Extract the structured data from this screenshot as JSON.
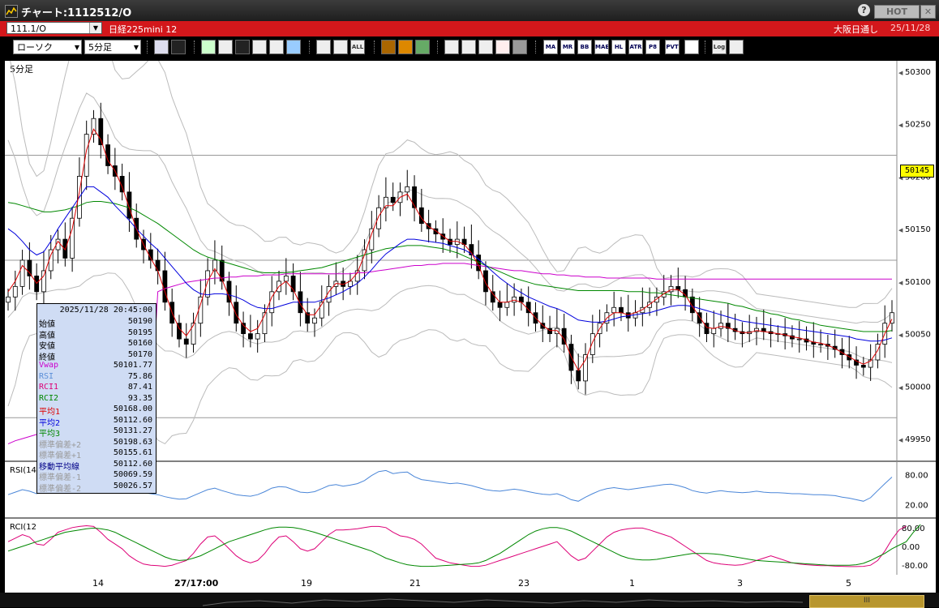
{
  "window": {
    "title": "チャート:1112512/O",
    "help_label": "?",
    "hot_label": "HOT",
    "close_label": "✕"
  },
  "symbol_bar": {
    "symbol": "111.1/O",
    "name": "日経225mini 12",
    "session": "大阪日通し",
    "date": "25/11/28"
  },
  "toolbar": {
    "chart_type": "ローソク",
    "period": "5分足",
    "icons": [
      "zoom-icon",
      "crosshair-icon",
      "pen-icon",
      "line-icon",
      "cursor-icon",
      "arrow-icon",
      "note-icon",
      "trash-icon",
      "candle-left-icon",
      "candle-right-icon",
      "all-icon",
      "settings-icon",
      "tool-icon",
      "color-icon",
      "download-icon",
      "magnify-icon",
      "compare-icon",
      "signal-icon",
      "lock-icon",
      "ma-icon",
      "mr-icon",
      "bb-icon",
      "mae-icon",
      "hl-icon",
      "atr-icon",
      "pb-icon",
      "pvt-icon",
      "box-icon",
      "log-icon",
      "export-icon"
    ],
    "icon_labels": {
      "all": "ALL",
      "ma": "MA",
      "mr": "MR",
      "bb": "BB",
      "mae": "MAE",
      "hl": "HL",
      "atr": "ATR",
      "pb": "P8",
      "pvt": "PVT",
      "log": "Log"
    }
  },
  "chart": {
    "timeframe_label": "5分足",
    "current_price": "50145",
    "y_labels": [
      "50300",
      "50250",
      "50200",
      "50150",
      "50100",
      "50050",
      "50000",
      "49950"
    ],
    "rsi_label": "RSI(14",
    "rsi_levels": [
      "80.00",
      "20.00"
    ],
    "rci_label": "RCI(12",
    "rci_levels": [
      "80.00",
      "0.00",
      "-80.00"
    ],
    "x_labels": [
      "14",
      "27/17:00",
      "19",
      "21",
      "23",
      "1",
      "3",
      "5"
    ]
  },
  "info": {
    "datetime": "2025/11/28  20:45:00",
    "rows": [
      {
        "key": "始値",
        "value": "50190",
        "color": "#000000"
      },
      {
        "key": "高値",
        "value": "50195",
        "color": "#000000"
      },
      {
        "key": "安値",
        "value": "50160",
        "color": "#000000"
      },
      {
        "key": "終値",
        "value": "50170",
        "color": "#000000"
      },
      {
        "key": "Vwap",
        "value": "50101.77",
        "color": "#cc00cc"
      },
      {
        "key": "RSI",
        "value": "75.86",
        "color": "#5b8fd8"
      },
      {
        "key": "RCI1",
        "value": "87.41",
        "color": "#dd0077"
      },
      {
        "key": "RCI2",
        "value": "93.35",
        "color": "#008800"
      },
      {
        "key": "平均1",
        "value": "50168.00",
        "color": "#dd0000"
      },
      {
        "key": "平均2",
        "value": "50112.60",
        "color": "#0000dd"
      },
      {
        "key": "平均3",
        "value": "50131.27",
        "color": "#008800"
      },
      {
        "key": "標準偏差+2",
        "value": "50198.63",
        "color": "#9a9a9a"
      },
      {
        "key": "標準偏差+1",
        "value": "50155.61",
        "color": "#9a9a9a"
      },
      {
        "key": "移動平均線",
        "value": "50112.60",
        "color": "#000088"
      },
      {
        "key": "標準偏差-1",
        "value": "50069.59",
        "color": "#9a9a9a"
      },
      {
        "key": "標準偏差-2",
        "value": "50026.57",
        "color": "#9a9a9a"
      }
    ]
  },
  "chart_data": {
    "type": "candlestick",
    "ylim": [
      49930,
      50310
    ],
    "close": [
      50085,
      50095,
      50120,
      50105,
      50090,
      50110,
      50130,
      50140,
      50122,
      50160,
      50200,
      50240,
      50255,
      50230,
      50210,
      50200,
      50185,
      50160,
      50140,
      50130,
      50120,
      50110,
      50080,
      50060,
      50045,
      50040,
      50060,
      50085,
      50110,
      50120,
      50100,
      50080,
      50060,
      50050,
      50045,
      50050,
      50070,
      50090,
      50100,
      50105,
      50090,
      50070,
      50060,
      50065,
      50080,
      50095,
      50100,
      50095,
      50100,
      50110,
      50130,
      50150,
      50170,
      50180,
      50175,
      50185,
      50190,
      50170,
      50155,
      50150,
      50145,
      50140,
      50135,
      50140,
      50135,
      50125,
      50110,
      50090,
      50080,
      50075,
      50080,
      50085,
      50080,
      50070,
      50060,
      50055,
      50050,
      50055,
      50040,
      50015,
      50005,
      50030,
      50050,
      50060,
      50070,
      50075,
      50070,
      50065,
      50070,
      50075,
      50080,
      50085,
      50090,
      50095,
      50092,
      50085,
      50070,
      50060,
      50050,
      50055,
      50060,
      50055,
      50052,
      50050,
      50052,
      50055,
      50052,
      50050,
      50050,
      50048,
      50045,
      50045,
      50042,
      50040,
      50040,
      50038,
      50035,
      50030,
      50025,
      50020,
      50018,
      50025,
      50040,
      50060,
      50070
    ],
    "ma_short": [
      50090,
      50100,
      50115,
      50108,
      50098,
      50105,
      50125,
      50138,
      50130,
      50150,
      50185,
      50225,
      50245,
      50235,
      50215,
      50205,
      50190,
      50170,
      50150,
      50135,
      50122,
      50110,
      50090,
      50070,
      50055,
      50048,
      50058,
      50078,
      50100,
      50112,
      50102,
      50085,
      50068,
      50058,
      50052,
      50055,
      50068,
      50085,
      50095,
      50100,
      50092,
      50078,
      50068,
      50068,
      50078,
      50090,
      50098,
      50097,
      50100,
      50108,
      50125,
      50145,
      50162,
      50172,
      50172,
      50180,
      50183,
      50172,
      50160,
      50152,
      50148,
      50143,
      50138,
      50138,
      50135,
      50127,
      50115,
      50098,
      50088,
      50080,
      50080,
      50082,
      50080,
      50073,
      50065,
      50058,
      50053,
      50053,
      50045,
      50028,
      50015,
      50025,
      50042,
      50055,
      50065,
      50070,
      50070,
      50068,
      50070,
      50073,
      50078,
      50083,
      50088,
      50092,
      50092,
      50087,
      50076,
      50066,
      50056,
      50055,
      50057,
      50056,
      50053,
      50051,
      50051,
      50053,
      50052,
      50051,
      50050,
      50049,
      50047,
      50046,
      50044,
      50042,
      50041,
      50039,
      50036,
      50032,
      50028,
      50024,
      50021,
      50024,
      50034,
      50050,
      50064
    ],
    "ma_mid": [
      50150,
      50145,
      50138,
      50130,
      50125,
      50128,
      50138,
      50150,
      50160,
      50170,
      50180,
      50190,
      50190,
      50185,
      50180,
      50172,
      50165,
      50158,
      50150,
      50143,
      50136,
      50130,
      50122,
      50114,
      50106,
      50098,
      50092,
      50088,
      50087,
      50088,
      50088,
      50087,
      50085,
      50082,
      50078,
      50075,
      50074,
      50074,
      50076,
      50078,
      50080,
      50080,
      50080,
      50080,
      50082,
      50084,
      50087,
      50090,
      50094,
      50098,
      50104,
      50111,
      50119,
      50126,
      50131,
      50136,
      50140,
      50140,
      50139,
      50138,
      50137,
      50136,
      50134,
      50132,
      50130,
      50126,
      50121,
      50115,
      50109,
      50103,
      50098,
      50093,
      50089,
      50085,
      50082,
      50079,
      50076,
      50074,
      50071,
      50067,
      50063,
      50062,
      50061,
      50061,
      50062,
      50064,
      50066,
      50067,
      50068,
      50069,
      50070,
      50072,
      50074,
      50076,
      50077,
      50077,
      50076,
      50074,
      50072,
      50070,
      50068,
      50066,
      50064,
      50062,
      50061,
      50060,
      50059,
      50058,
      50057,
      50056,
      50055,
      50054,
      50053,
      50052,
      50051,
      50050,
      50049,
      50048,
      50047,
      50045,
      50044,
      50043,
      50043,
      50044,
      50046
    ],
    "ma_long": [
      50175,
      50174,
      50172,
      50170,
      50168,
      50166,
      50166,
      50167,
      50168,
      50170,
      50172,
      50175,
      50176,
      50176,
      50175,
      50174,
      50172,
      50170,
      50167,
      50163,
      50159,
      50155,
      50150,
      50145,
      50140,
      50135,
      50130,
      50126,
      50123,
      50121,
      50119,
      50117,
      50115,
      50113,
      50111,
      50109,
      50108,
      50108,
      50108,
      50108,
      50109,
      50110,
      50111,
      50112,
      50113,
      50115,
      50117,
      50119,
      50121,
      50123,
      50125,
      50127,
      50129,
      50131,
      50132,
      50133,
      50134,
      50134,
      50134,
      50133,
      50132,
      50131,
      50129,
      50127,
      50124,
      50121,
      50118,
      50115,
      50112,
      50109,
      50106,
      50103,
      50101,
      50099,
      50097,
      50096,
      50095,
      50094,
      50093,
      50092,
      50091,
      50091,
      50091,
      50091,
      50091,
      50091,
      50091,
      50090,
      50090,
      50090,
      50089,
      50089,
      50088,
      50087,
      50086,
      50085,
      50084,
      50083,
      50082,
      50081,
      50080,
      50079,
      50077,
      50076,
      50074,
      50072,
      50071,
      50069,
      50068,
      50066,
      50064,
      50063,
      50061,
      50060,
      50058,
      50057,
      50056,
      50055,
      50054,
      50053,
      50052,
      50052,
      50052,
      50052,
      50053
    ],
    "vwap": [
      49945,
      49948,
      49950,
      49952,
      49954,
      49956,
      49957,
      49958,
      49959,
      49960,
      49961,
      49962,
      49963,
      49964,
      49965,
      49966,
      49967,
      49968,
      49969,
      49970,
      49970,
      50090,
      50093,
      50095,
      50097,
      50099,
      50100,
      50101,
      50102,
      50103,
      50103,
      50104,
      50104,
      50105,
      50105,
      50105,
      50106,
      50106,
      50106,
      50107,
      50107,
      50107,
      50107,
      50107,
      50107,
      50107,
      50107,
      50107,
      50107,
      50108,
      50108,
      50109,
      50110,
      50111,
      50112,
      50113,
      50114,
      50115,
      50115,
      50116,
      50116,
      50117,
      50117,
      50117,
      50117,
      50116,
      50115,
      50114,
      50113,
      50112,
      50111,
      50110,
      50110,
      50109,
      50108,
      50107,
      50107,
      50106,
      50106,
      50105,
      50105,
      50104,
      50104,
      50104,
      50103,
      50103,
      50103,
      50103,
      50103,
      50103,
      50103,
      50102,
      50102,
      50102,
      50102,
      50102,
      50102,
      50102,
      50102,
      50102,
      50102,
      50102,
      50102,
      50102,
      50102,
      50102,
      50102,
      50102,
      50102,
      50102,
      50102,
      50102,
      50102,
      50102,
      50102,
      50102,
      50102,
      50102,
      50102,
      50102,
      50102,
      50102,
      50102,
      50102,
      50102
    ],
    "rsi": [
      40,
      45,
      50,
      47,
      42,
      46,
      58,
      60,
      55,
      63,
      70,
      78,
      77,
      72,
      62,
      60,
      57,
      52,
      48,
      44,
      42,
      40,
      36,
      33,
      31,
      32,
      38,
      44,
      50,
      53,
      48,
      44,
      40,
      38,
      37,
      40,
      46,
      53,
      56,
      55,
      50,
      45,
      44,
      46,
      52,
      58,
      60,
      57,
      59,
      62,
      68,
      78,
      86,
      88,
      82,
      84,
      85,
      76,
      70,
      68,
      66,
      64,
      62,
      63,
      61,
      58,
      54,
      50,
      48,
      47,
      49,
      51,
      49,
      46,
      43,
      41,
      40,
      42,
      37,
      30,
      27,
      35,
      42,
      48,
      52,
      54,
      52,
      50,
      52,
      54,
      56,
      58,
      60,
      61,
      58,
      54,
      48,
      45,
      43,
      46,
      48,
      46,
      45,
      44,
      45,
      47,
      45,
      44,
      44,
      43,
      42,
      42,
      41,
      40,
      40,
      39,
      38,
      35,
      33,
      30,
      27,
      34,
      48,
      62,
      75
    ],
    "rci1": [
      20,
      35,
      50,
      40,
      10,
      5,
      30,
      60,
      70,
      80,
      85,
      88,
      85,
      60,
      30,
      10,
      -10,
      -40,
      -60,
      -75,
      -80,
      -82,
      -85,
      -80,
      -70,
      -60,
      -30,
      10,
      40,
      45,
      20,
      -10,
      -40,
      -60,
      -70,
      -60,
      -30,
      10,
      40,
      45,
      20,
      -10,
      -20,
      -10,
      20,
      50,
      70,
      70,
      72,
      75,
      80,
      85,
      85,
      80,
      60,
      45,
      40,
      30,
      10,
      -20,
      -50,
      -60,
      -70,
      -75,
      -80,
      -85,
      -85,
      -80,
      -70,
      -60,
      -50,
      -40,
      -30,
      -20,
      -10,
      0,
      10,
      20,
      -10,
      -40,
      -60,
      -50,
      -20,
      10,
      40,
      60,
      70,
      75,
      78,
      78,
      70,
      60,
      50,
      40,
      20,
      0,
      -20,
      -40,
      -60,
      -70,
      -75,
      -78,
      -80,
      -78,
      -70,
      -60,
      -50,
      -40,
      -50,
      -60,
      -70,
      -75,
      -78,
      -80,
      -82,
      -82,
      -84,
      -85,
      -86,
      -86,
      -85,
      -80,
      -60,
      -20,
      30,
      70,
      87
    ],
    "rci2": [
      -20,
      -10,
      0,
      10,
      20,
      30,
      40,
      50,
      60,
      65,
      70,
      75,
      78,
      75,
      70,
      60,
      45,
      30,
      15,
      0,
      -15,
      -30,
      -45,
      -55,
      -60,
      -58,
      -50,
      -40,
      -25,
      -10,
      5,
      20,
      30,
      40,
      50,
      60,
      70,
      78,
      82,
      82,
      80,
      75,
      68,
      60,
      50,
      40,
      30,
      20,
      10,
      0,
      -10,
      -20,
      -35,
      -50,
      -60,
      -70,
      -78,
      -82,
      -85,
      -85,
      -84,
      -82,
      -80,
      -78,
      -76,
      -74,
      -70,
      -60,
      -45,
      -30,
      -10,
      10,
      30,
      50,
      65,
      75,
      80,
      80,
      75,
      65,
      50,
      35,
      20,
      5,
      -10,
      -25,
      -40,
      -50,
      -55,
      -58,
      -58,
      -55,
      -50,
      -45,
      -40,
      -35,
      -30,
      -30,
      -30,
      -32,
      -35,
      -40,
      -45,
      -50,
      -55,
      -60,
      -62,
      -64,
      -66,
      -68,
      -70,
      -72,
      -74,
      -76,
      -78,
      -80,
      -80,
      -80,
      -80,
      -78,
      -72,
      -60,
      -45,
      -30,
      -10,
      5,
      20,
      60,
      93
    ]
  }
}
